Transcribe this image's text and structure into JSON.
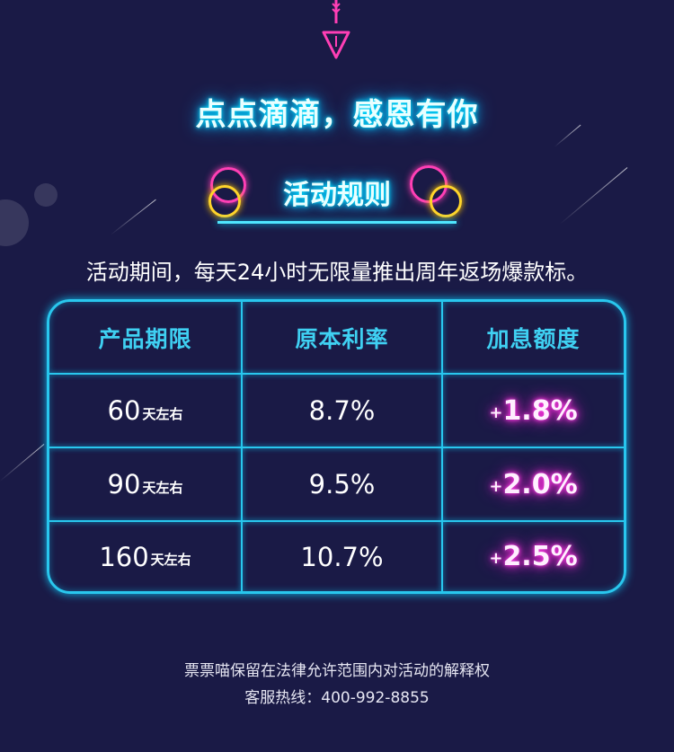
{
  "title": "点点滴滴，感恩有你",
  "rules_title": "活动规则",
  "description": "活动期间，每天24小时无限量推出周年返场爆款标。",
  "table": {
    "headers": [
      "产品期限",
      "原本利率",
      "加息额度"
    ],
    "rows": [
      {
        "term": "60",
        "unit": "天左右",
        "rate": "8.7%",
        "bonus_sign": "+",
        "bonus": "1.8%"
      },
      {
        "term": "90",
        "unit": "天左右",
        "rate": "9.5%",
        "bonus_sign": "+",
        "bonus": "2.0%"
      },
      {
        "term": "160",
        "unit": "天左右",
        "rate": "10.7%",
        "bonus_sign": "+",
        "bonus": "2.5%"
      }
    ]
  },
  "footer": {
    "disclaimer": "票票喵保留在法律允许范围内对活动的解释权",
    "hotline": "客服热线：400-992-8855"
  },
  "colors": {
    "background": "#1a1a46",
    "neon_cyan": "#29c7ee",
    "neon_pink": "#ff3fb5",
    "neon_yellow": "#ffd42a",
    "bonus_magenta": "#ff2fe0"
  }
}
